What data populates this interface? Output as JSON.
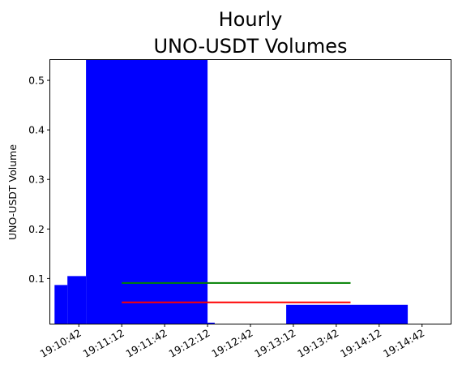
{
  "chart_data": {
    "type": "bar",
    "title_lines": [
      "Hourly",
      "UNO-USDT Volumes"
    ],
    "xlabel": "",
    "ylabel": "UNO-USDT Volume",
    "ylim": [
      0.009,
      0.541
    ],
    "xlim": [
      "19:10:22",
      "19:15:02"
    ],
    "grid": false,
    "x_ticks": [
      "19:10:42",
      "19:11:12",
      "19:11:42",
      "19:12:12",
      "19:12:42",
      "19:13:12",
      "19:13:42",
      "19:14:12",
      "19:14:42"
    ],
    "y_ticks": [
      0.1,
      0.2,
      0.3,
      0.4,
      0.5
    ],
    "bar_color": "#0000ff",
    "bars": [
      {
        "start": "19:10:25",
        "end": "19:10:34",
        "value": 0.087
      },
      {
        "start": "19:10:34",
        "end": "19:10:47",
        "value": 0.105
      },
      {
        "start": "19:10:47",
        "end": "19:12:12",
        "value": 0.541
      },
      {
        "start": "19:12:12",
        "end": "19:12:17",
        "value": 0.011
      },
      {
        "start": "19:13:07",
        "end": "19:14:32",
        "value": 0.047
      }
    ],
    "lines": [
      {
        "color": "#008000",
        "from": "19:11:12",
        "to": "19:13:52",
        "value": 0.091
      },
      {
        "color": "#ff0000",
        "from": "19:11:12",
        "to": "19:13:52",
        "value": 0.052
      }
    ]
  }
}
